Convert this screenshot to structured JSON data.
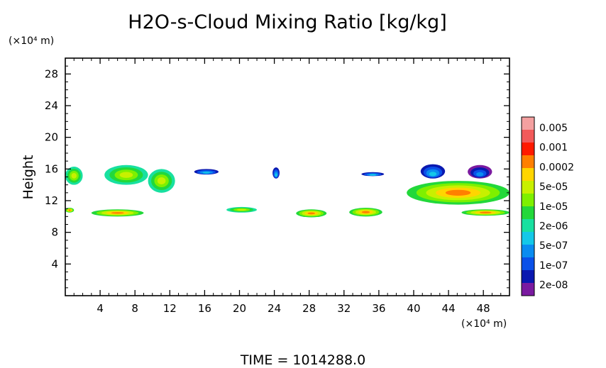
{
  "chart_data": {
    "type": "heatmap",
    "title": "H2O-s-Cloud Mixing Ratio [kg/kg]",
    "ylabel": "Height",
    "y_unit": "(×10⁴ m)",
    "x_unit": "(×10⁴ m)",
    "xlim": [
      0,
      51
    ],
    "ylim": [
      0,
      30
    ],
    "x_ticks": [
      "4",
      "8",
      "12",
      "16",
      "20",
      "24",
      "28",
      "32",
      "36",
      "40",
      "44",
      "48"
    ],
    "y_ticks": [
      "4",
      "8",
      "12",
      "16",
      "20",
      "24",
      "28"
    ],
    "colorbar": {
      "labels": [
        "0.005",
        "0.001",
        "0.0002",
        "5e-05",
        "1e-05",
        "2e-06",
        "5e-07",
        "1e-07",
        "2e-08"
      ],
      "colors": [
        "#f4a0a0",
        "#f25a5a",
        "#ff1a00",
        "#ff7f00",
        "#ffd500",
        "#c8f000",
        "#7ef000",
        "#22d83a",
        "#18e0a0",
        "#14c8e8",
        "#0a8cf0",
        "#0a50e8",
        "#0a18b0",
        "#7a1aa0"
      ]
    },
    "clouds": [
      {
        "x": [
          0,
          2.0
        ],
        "y": [
          14.0,
          16.3
        ],
        "peak": "5e-05"
      },
      {
        "x": [
          4.5,
          9.5
        ],
        "y": [
          14.0,
          16.5
        ],
        "peak": "5e-05"
      },
      {
        "x": [
          9.5,
          12.6
        ],
        "y": [
          13.0,
          16.0
        ],
        "peak": "5e-05"
      },
      {
        "x": [
          14.8,
          17.6
        ],
        "y": [
          15.3,
          16.0
        ],
        "peak": "5e-07"
      },
      {
        "x": [
          23.8,
          24.6
        ],
        "y": [
          14.8,
          16.2
        ],
        "peak": "5e-07"
      },
      {
        "x": [
          34.0,
          36.6
        ],
        "y": [
          15.1,
          15.6
        ],
        "peak": "5e-07"
      },
      {
        "x": [
          40.8,
          43.6
        ],
        "y": [
          14.8,
          16.6
        ],
        "peak": "5e-07"
      },
      {
        "x": [
          46.2,
          49.0
        ],
        "y": [
          14.8,
          16.5
        ],
        "peak": "1e-07"
      },
      {
        "x": [
          39.2,
          51.0
        ],
        "y": [
          11.5,
          14.5
        ],
        "peak": "0.0002"
      },
      {
        "x": [
          0,
          1.0
        ],
        "y": [
          10.5,
          11.1
        ],
        "peak": "0.0002"
      },
      {
        "x": [
          3.0,
          9.0
        ],
        "y": [
          10.0,
          10.9
        ],
        "peak": "0.0002"
      },
      {
        "x": [
          18.5,
          22.0
        ],
        "y": [
          10.5,
          11.2
        ],
        "peak": "5e-05"
      },
      {
        "x": [
          26.5,
          30.0
        ],
        "y": [
          9.9,
          10.9
        ],
        "peak": "0.0002"
      },
      {
        "x": [
          32.6,
          36.4
        ],
        "y": [
          10.0,
          11.1
        ],
        "peak": "0.0002"
      },
      {
        "x": [
          45.5,
          51.0
        ],
        "y": [
          10.1,
          10.9
        ],
        "peak": "0.0002"
      }
    ]
  },
  "time_label": "TIME =  1014288.0"
}
